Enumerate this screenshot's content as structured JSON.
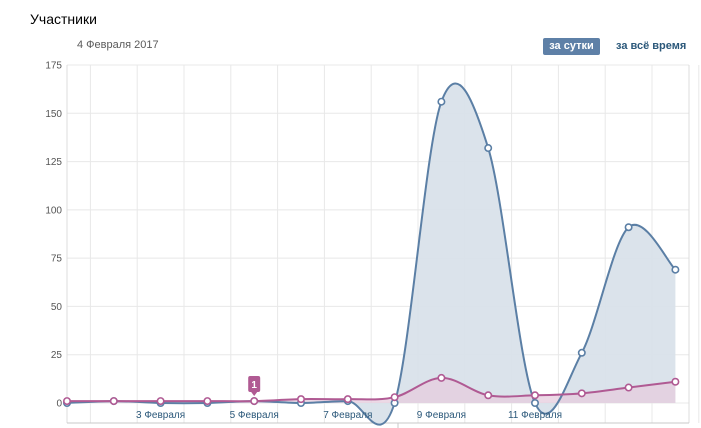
{
  "header": {
    "title": "Участники",
    "date": "4 Февраля 2017",
    "btn_day": "за сутки",
    "btn_all": "за всё время"
  },
  "tooltip": {
    "value": "1"
  },
  "colors": {
    "series1": "#5b7fa5",
    "series1_fill": "#d9e1ea",
    "series2": "#b05a93",
    "series2_fill": "#e6ccdd",
    "grid": "#e8e8e8"
  },
  "chart_data": {
    "type": "area",
    "title": "Участники",
    "ylim": [
      0,
      175
    ],
    "yticks": [
      0,
      25,
      50,
      75,
      100,
      125,
      150,
      175
    ],
    "x": [
      1,
      2,
      3,
      4,
      5,
      6,
      7,
      8,
      9,
      10,
      11,
      12,
      13,
      14
    ],
    "xtick_labels": [
      {
        "x": 3,
        "label": "3 Февраля"
      },
      {
        "x": 5,
        "label": "5 Февраля"
      },
      {
        "x": 7,
        "label": "7 Февраля"
      },
      {
        "x": 9,
        "label": "9 Февраля"
      },
      {
        "x": 11,
        "label": "11 Февраля"
      }
    ],
    "series": [
      {
        "values": [
          0,
          1,
          0,
          0,
          1,
          0,
          1,
          0,
          156,
          132,
          0,
          26,
          91,
          69
        ]
      },
      {
        "values": [
          1,
          1,
          1,
          1,
          1,
          2,
          2,
          3,
          13,
          4,
          4,
          5,
          8,
          11
        ]
      }
    ],
    "grid": true
  }
}
